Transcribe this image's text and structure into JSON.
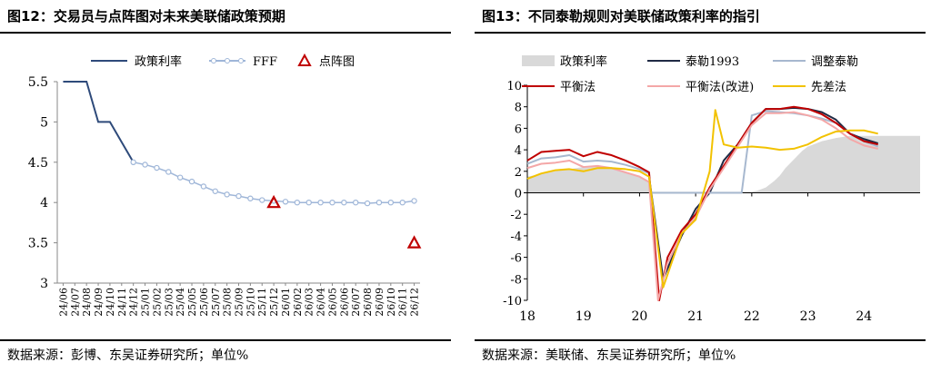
{
  "chart_data": [
    {
      "type": "line",
      "title": "图12：交易员与点阵图对未来美联储政策预期",
      "source": "数据来源：彭博、东吴证券研究所；单位%",
      "legend_position": "top",
      "grid": false,
      "categories": [
        "24/06",
        "24/07",
        "24/08",
        "24/09",
        "24/10",
        "24/11",
        "24/12",
        "25/01",
        "25/02",
        "25/03",
        "25/04",
        "25/05",
        "25/06",
        "25/07",
        "25/08",
        "25/09",
        "25/10",
        "25/11",
        "25/12",
        "26/01",
        "26/02",
        "26/03",
        "26/04",
        "26/05",
        "26/06",
        "26/07",
        "26/08",
        "26/09",
        "26/10",
        "26/11",
        "26/12"
      ],
      "ylim": [
        3,
        5.5
      ],
      "yticks": [
        "3",
        "3.5",
        "4",
        "4.5",
        "5",
        "5.5"
      ],
      "series": [
        {
          "name": "政策利率",
          "style": "line",
          "color": "#2e4a7a",
          "values": [
            5.5,
            5.5,
            5.5,
            5.0,
            5.0,
            4.75,
            4.5,
            null,
            null,
            null,
            null,
            null,
            null,
            null,
            null,
            null,
            null,
            null,
            null,
            null,
            null,
            null,
            null,
            null,
            null,
            null,
            null,
            null,
            null,
            null,
            null
          ]
        },
        {
          "name": "FFF",
          "style": "line-circle",
          "color": "#9fb6d8",
          "values": [
            null,
            null,
            null,
            null,
            null,
            null,
            4.5,
            4.47,
            4.43,
            4.38,
            4.31,
            4.26,
            4.2,
            4.14,
            4.1,
            4.08,
            4.05,
            4.03,
            4.02,
            4.01,
            4.0,
            4.0,
            4.0,
            4.0,
            4.0,
            4.0,
            3.99,
            4.0,
            4.0,
            4.0,
            4.02
          ]
        },
        {
          "name": "点阵图",
          "style": "triangle",
          "color": "#c00000",
          "points": [
            {
              "x": "25/12",
              "y": 4.0
            },
            {
              "x": "26/12",
              "y": 3.5
            }
          ]
        }
      ]
    },
    {
      "type": "line",
      "title": "图13：不同泰勒规则对美联储政策利率的指引",
      "source": "数据来源：美联储、东吴证券研究所；单位%",
      "legend_position": "top",
      "grid": false,
      "xlim": [
        18,
        25
      ],
      "ylim": [
        -10,
        10
      ],
      "xticks": [
        "18",
        "19",
        "20",
        "21",
        "22",
        "23",
        "24"
      ],
      "yticks": [
        "-10",
        "-8",
        "-6",
        "-4",
        "-2",
        "0",
        "2",
        "4",
        "6",
        "8",
        "10"
      ],
      "series": [
        {
          "name": "政策利率",
          "style": "area",
          "color": "#d9d9d9",
          "x": [
            18,
            18.5,
            19,
            19.4,
            19.6,
            19.8,
            20.0,
            20.17,
            20.2,
            21.5,
            22.0,
            22.1,
            22.25,
            22.4,
            22.5,
            22.6,
            22.75,
            22.9,
            23.0,
            23.25,
            23.5,
            23.75,
            24.0,
            24.25,
            24.5,
            24.75,
            25.0
          ],
          "values": [
            1.5,
            2.0,
            2.4,
            2.4,
            2.1,
            1.8,
            1.6,
            1.0,
            0.1,
            0.1,
            0.1,
            0.2,
            0.5,
            1.1,
            1.6,
            2.3,
            3.1,
            3.9,
            4.3,
            4.8,
            5.1,
            5.3,
            5.3,
            5.3,
            5.3,
            5.3,
            5.3
          ]
        },
        {
          "name": "泰勒1993",
          "style": "line",
          "color": "#1f2a44",
          "x": [
            20.17,
            20.42,
            20.75,
            21.0,
            21.25,
            21.5,
            21.75,
            22.0,
            22.25,
            22.5,
            22.75,
            23.0,
            23.25,
            23.5,
            23.75,
            24.0,
            24.25
          ],
          "values": [
            1.5,
            -8.0,
            -4.0,
            -1.5,
            0.0,
            3.0,
            4.5,
            6.5,
            7.8,
            7.8,
            7.9,
            7.8,
            7.5,
            6.8,
            5.5,
            5.0,
            4.6
          ]
        },
        {
          "name": "调整泰勒",
          "style": "line",
          "color": "#a7b8cf",
          "x": [
            18.0,
            18.25,
            18.5,
            18.75,
            19.0,
            19.25,
            19.5,
            19.75,
            20.0,
            20.17,
            20.2,
            21.5,
            21.75,
            21.82,
            22.0,
            22.25,
            22.5,
            22.75,
            23.0,
            23.25,
            23.5,
            23.75,
            24.0,
            24.25
          ],
          "values": [
            2.7,
            3.2,
            3.3,
            3.5,
            2.9,
            3.0,
            2.9,
            2.6,
            2.2,
            1.8,
            0.0,
            0.0,
            0.0,
            0.0,
            7.2,
            7.6,
            7.5,
            7.4,
            7.2,
            6.9,
            6.5,
            5.5,
            4.8,
            4.3
          ]
        },
        {
          "name": "平衡法",
          "style": "line",
          "color": "#c00000",
          "x": [
            18.0,
            18.25,
            18.5,
            18.75,
            19.0,
            19.25,
            19.5,
            19.75,
            20.0,
            20.17,
            20.35,
            20.5,
            20.75,
            21.0,
            21.25,
            21.5,
            21.75,
            22.0,
            22.25,
            22.5,
            22.75,
            23.0,
            23.25,
            23.5,
            23.75,
            24.0,
            24.25
          ],
          "values": [
            3.0,
            3.8,
            3.9,
            4.0,
            3.4,
            3.8,
            3.5,
            3.0,
            2.4,
            1.9,
            -10.0,
            -6.0,
            -3.5,
            -2.0,
            0.5,
            2.5,
            4.5,
            6.5,
            7.8,
            7.8,
            8.0,
            7.8,
            7.3,
            6.5,
            5.5,
            4.8,
            4.5
          ]
        },
        {
          "name": "平衡法(改进)",
          "style": "line",
          "color": "#f4a7a7",
          "x": [
            18.0,
            18.25,
            18.5,
            18.75,
            19.0,
            19.25,
            19.5,
            19.75,
            20.0,
            20.17,
            20.33,
            20.5,
            20.75,
            21.0,
            21.25,
            21.5,
            21.75,
            22.0,
            22.25,
            22.5,
            22.75,
            23.0,
            23.25,
            23.5,
            23.75,
            24.0,
            24.25
          ],
          "values": [
            2.3,
            2.7,
            2.8,
            3.0,
            2.4,
            2.5,
            2.3,
            1.9,
            1.5,
            1.0,
            -10.0,
            -6.5,
            -3.8,
            -2.3,
            0.3,
            2.3,
            4.3,
            6.3,
            7.4,
            7.4,
            7.5,
            7.2,
            6.8,
            6.0,
            5.0,
            4.4,
            4.1
          ]
        },
        {
          "name": "先差法",
          "style": "line",
          "color": "#f2c200",
          "x": [
            18.0,
            18.25,
            18.5,
            18.75,
            19.0,
            19.25,
            19.5,
            19.75,
            20.0,
            20.17,
            20.42,
            20.75,
            21.0,
            21.25,
            21.35,
            21.5,
            21.75,
            22.0,
            22.25,
            22.5,
            22.75,
            23.0,
            23.25,
            23.5,
            23.75,
            24.0,
            24.25
          ],
          "values": [
            1.3,
            1.8,
            2.1,
            2.2,
            2.0,
            2.3,
            2.3,
            2.2,
            2.0,
            1.5,
            -8.8,
            -3.8,
            -2.5,
            2.0,
            7.7,
            4.5,
            4.2,
            4.3,
            4.2,
            4.0,
            4.1,
            4.5,
            5.2,
            5.7,
            5.8,
            5.8,
            5.5
          ]
        }
      ]
    }
  ]
}
